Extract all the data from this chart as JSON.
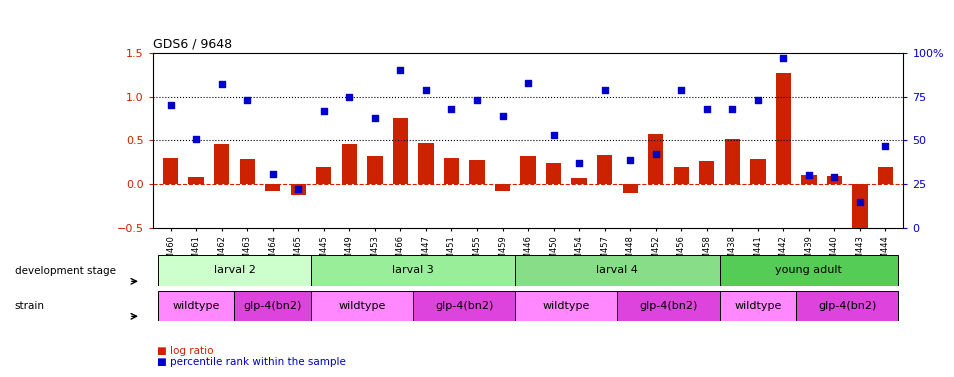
{
  "title": "GDS6 / 9648",
  "samples": [
    "GSM460",
    "GSM461",
    "GSM462",
    "GSM463",
    "GSM464",
    "GSM465",
    "GSM445",
    "GSM449",
    "GSM453",
    "GSM466",
    "GSM447",
    "GSM451",
    "GSM455",
    "GSM459",
    "GSM446",
    "GSM450",
    "GSM454",
    "GSM457",
    "GSM448",
    "GSM452",
    "GSM456",
    "GSM458",
    "GSM438",
    "GSM441",
    "GSM442",
    "GSM439",
    "GSM440",
    "GSM443",
    "GSM444"
  ],
  "log_ratio": [
    0.3,
    0.08,
    0.46,
    0.29,
    -0.08,
    -0.12,
    0.2,
    0.46,
    0.32,
    0.75,
    0.47,
    0.3,
    0.27,
    -0.08,
    0.32,
    0.24,
    0.07,
    0.33,
    -0.1,
    0.57,
    0.2,
    0.26,
    0.52,
    0.29,
    1.27,
    0.1,
    0.09,
    -0.57,
    0.2
  ],
  "percentile": [
    70,
    51,
    82,
    73,
    31,
    22,
    67,
    75,
    63,
    90,
    79,
    68,
    73,
    64,
    83,
    53,
    37,
    79,
    39,
    42,
    79,
    68,
    68,
    73,
    97,
    30,
    29,
    15,
    47
  ],
  "dev_stages": [
    {
      "label": "larval 2",
      "start": 0,
      "end": 6,
      "color": "#ccffcc"
    },
    {
      "label": "larval 3",
      "start": 6,
      "end": 14,
      "color": "#99ee99"
    },
    {
      "label": "larval 4",
      "start": 14,
      "end": 22,
      "color": "#88dd88"
    },
    {
      "label": "young adult",
      "start": 22,
      "end": 29,
      "color": "#55cc55"
    }
  ],
  "strains": [
    {
      "label": "wildtype",
      "start": 0,
      "end": 3,
      "color": "#ff88ff"
    },
    {
      "label": "glp-4(bn2)",
      "start": 3,
      "end": 6,
      "color": "#dd44dd"
    },
    {
      "label": "wildtype",
      "start": 6,
      "end": 10,
      "color": "#ff88ff"
    },
    {
      "label": "glp-4(bn2)",
      "start": 10,
      "end": 14,
      "color": "#dd44dd"
    },
    {
      "label": "wildtype",
      "start": 14,
      "end": 18,
      "color": "#ff88ff"
    },
    {
      "label": "glp-4(bn2)",
      "start": 18,
      "end": 22,
      "color": "#dd44dd"
    },
    {
      "label": "wildtype",
      "start": 22,
      "end": 25,
      "color": "#ff88ff"
    },
    {
      "label": "glp-4(bn2)",
      "start": 25,
      "end": 29,
      "color": "#dd44dd"
    }
  ],
  "ylim_left": [
    -0.5,
    1.5
  ],
  "ylim_right": [
    0,
    100
  ],
  "yticks_left": [
    -0.5,
    0.0,
    0.5,
    1.0,
    1.5
  ],
  "yticks_right": [
    0,
    25,
    50,
    75,
    100
  ],
  "bar_color": "#cc2200",
  "dot_color": "#0000cc",
  "hline_color": "#cc2200"
}
